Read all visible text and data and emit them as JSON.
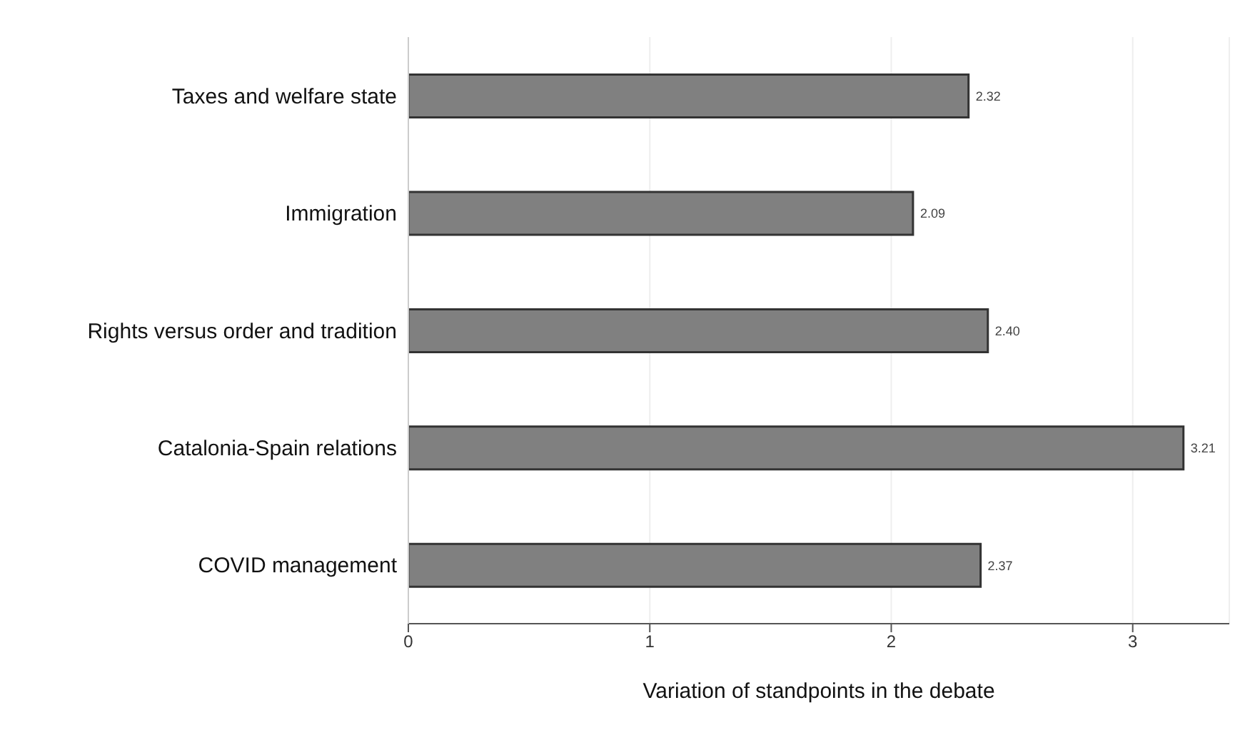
{
  "chart_data": {
    "type": "bar",
    "orientation": "horizontal",
    "xlabel": "Variation of standpoints in the debate",
    "categories": [
      "Taxes and welfare state",
      "Immigration",
      "Rights versus order and tradition",
      "Catalonia-Spain relations",
      "COVID management"
    ],
    "values": [
      2.32,
      2.09,
      2.4,
      3.21,
      2.37
    ],
    "value_labels": [
      "2.32",
      "2.09",
      "2.40",
      "3.21",
      "2.37"
    ],
    "color": "#808080",
    "xlim": [
      0,
      3.4
    ],
    "xticks": [
      0,
      1,
      2,
      3
    ],
    "grid": "x"
  }
}
